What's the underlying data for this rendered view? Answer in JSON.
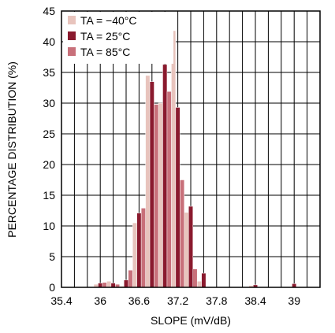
{
  "chart_data": {
    "type": "bar",
    "xlabel": "SLOPE (mV/dB)",
    "ylabel": "PERCENTAGE DISTRIBUTION (%)",
    "xlim": [
      35.4,
      39.4
    ],
    "ylim": [
      0,
      45
    ],
    "x_ticks": [
      "35.4",
      "36",
      "36.6",
      "37.2",
      "37.8",
      "38.4",
      "39"
    ],
    "y_ticks": [
      "0",
      "5",
      "10",
      "15",
      "20",
      "25",
      "30",
      "35",
      "40",
      "45"
    ],
    "bin_width": 0.2,
    "bin_centers": [
      36.0,
      36.2,
      36.4,
      36.6,
      36.8,
      37.0,
      37.2,
      37.4,
      37.6,
      37.8,
      38.4,
      39.0
    ],
    "legend_position": "top-left",
    "series": [
      {
        "name": "TA = −40°C",
        "color": "#e8c4bd",
        "values": [
          0.5,
          1.0,
          0.2,
          10.5,
          34.5,
          30.0,
          41.8,
          12.2,
          1.0,
          0.0,
          0.3,
          0.0
        ]
      },
      {
        "name": "TA = 25°C",
        "color": "#8a1a2e",
        "values": [
          0.7,
          0.7,
          1.2,
          12.1,
          33.5,
          36.3,
          29.3,
          13.2,
          2.3,
          0.0,
          0.4,
          0.6
        ]
      },
      {
        "name": "TA = 85°C",
        "color": "#c8707a",
        "values": [
          0.8,
          0.5,
          2.8,
          12.9,
          29.8,
          31.9,
          17.5,
          3.0,
          0.0,
          0.0,
          0.0,
          0.0
        ]
      }
    ]
  }
}
